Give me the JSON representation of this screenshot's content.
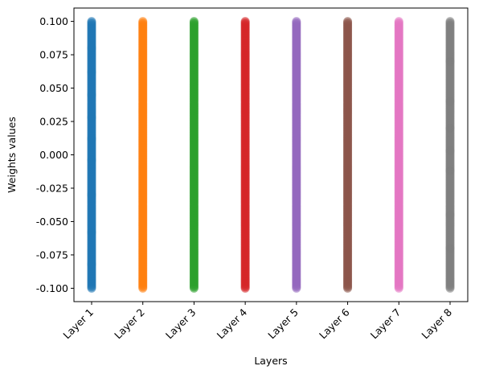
{
  "chart_data": {
    "type": "scatter",
    "title": "",
    "xlabel": "Layers",
    "ylabel": "Weights values",
    "categories": [
      "Layer 1",
      "Layer 2",
      "Layer 3",
      "Layer 4",
      "Layer 5",
      "Layer 6",
      "Layer 7",
      "Layer 8"
    ],
    "ylim": [
      -0.11,
      0.11
    ],
    "yticks": [
      "-0.100",
      "-0.075",
      "-0.050",
      "-0.025",
      "0.000",
      "0.025",
      "0.050",
      "0.075",
      "0.100"
    ],
    "grid": false,
    "legend": "none",
    "series": [
      {
        "category": "Layer 1",
        "color": "#1f77b4",
        "min": -0.1,
        "max": 0.1,
        "sparse_values": [
          0.028,
          0.012,
          -0.004,
          0.045,
          -0.03,
          0.062,
          -0.058,
          0.08,
          -0.082
        ]
      },
      {
        "category": "Layer 2",
        "color": "#ff7f0e",
        "min": -0.1,
        "max": 0.1,
        "sparse_values": []
      },
      {
        "category": "Layer 3",
        "color": "#2ca02c",
        "min": -0.1,
        "max": 0.1,
        "sparse_values": []
      },
      {
        "category": "Layer 4",
        "color": "#d62728",
        "min": -0.1,
        "max": 0.1,
        "sparse_values": []
      },
      {
        "category": "Layer 5",
        "color": "#9467bd",
        "min": -0.1,
        "max": 0.1,
        "sparse_values": []
      },
      {
        "category": "Layer 6",
        "color": "#8c564b",
        "min": -0.1,
        "max": 0.1,
        "sparse_values": []
      },
      {
        "category": "Layer 7",
        "color": "#e377c2",
        "min": -0.1,
        "max": 0.1,
        "sparse_values": []
      },
      {
        "category": "Layer 8",
        "color": "#7f7f7f",
        "min": -0.1,
        "max": 0.1,
        "sparse_values": [
          0.003,
          0.02,
          -0.012,
          0.04,
          -0.045,
          0.07,
          -0.07
        ]
      }
    ]
  }
}
